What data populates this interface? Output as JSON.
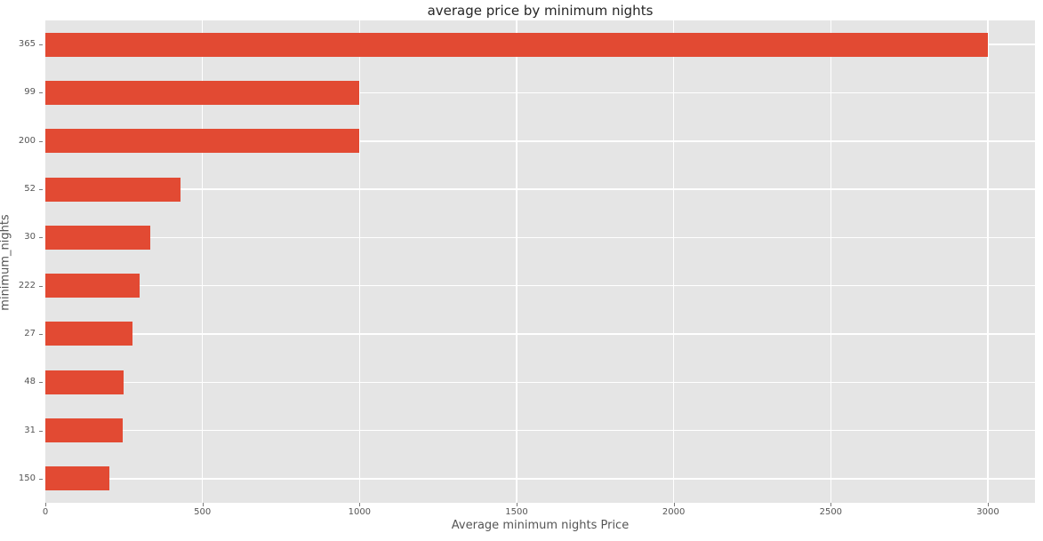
{
  "chart_data": {
    "type": "bar",
    "orientation": "horizontal",
    "title": "average price by minimum nights",
    "xlabel": "Average minimum nights Price",
    "ylabel": "minimum_nights",
    "categories": [
      "365",
      "99",
      "200",
      "52",
      "30",
      "222",
      "27",
      "48",
      "31",
      "150"
    ],
    "values": [
      3000,
      1000,
      1000,
      430,
      333,
      300,
      278,
      250,
      245,
      203
    ],
    "xticks": [
      0,
      500,
      1000,
      1500,
      2000,
      2500,
      3000
    ],
    "xlim": [
      0,
      3150
    ],
    "legend": "none",
    "grid": "on",
    "colors": {
      "bar": "#e24a33",
      "plot_background": "#e5e5e5",
      "gridline": "#ffffff",
      "tick_label": "#555555",
      "title": "#262626"
    }
  }
}
